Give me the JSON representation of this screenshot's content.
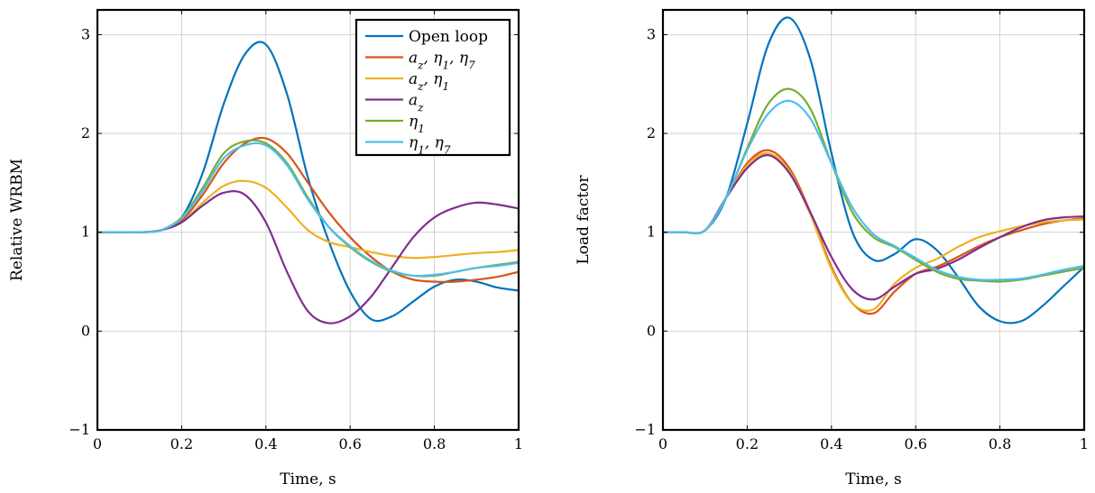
{
  "chart_data": [
    {
      "type": "line",
      "title": "",
      "xlabel": "Time, s",
      "ylabel": "Relative WRBM",
      "xlim": [
        0,
        1
      ],
      "ylim": [
        -1,
        3.25
      ],
      "xticks": [
        0,
        0.2,
        0.4,
        0.6,
        0.8,
        1
      ],
      "xtick_labels": [
        "0",
        "0.2",
        "0.4",
        "0.6",
        "0.8",
        "1"
      ],
      "yticks": [
        -1,
        0,
        1,
        2,
        3
      ],
      "ytick_labels": [
        "−1",
        "0",
        "1",
        "2",
        "3"
      ],
      "grid": true,
      "legend_position": "top-right",
      "x": [
        0,
        0.05,
        0.1,
        0.15,
        0.2,
        0.25,
        0.3,
        0.35,
        0.4,
        0.45,
        0.5,
        0.55,
        0.6,
        0.65,
        0.7,
        0.75,
        0.8,
        0.85,
        0.9,
        0.95,
        1
      ],
      "series": [
        {
          "name": "Open loop",
          "color": "#0072BD",
          "values": [
            1.0,
            1.0,
            1.0,
            1.02,
            1.15,
            1.6,
            2.3,
            2.8,
            2.9,
            2.4,
            1.55,
            0.9,
            0.4,
            0.12,
            0.15,
            0.3,
            0.45,
            0.52,
            0.5,
            0.44,
            0.41
          ]
        },
        {
          "name": "a_z, η_1, η_7",
          "color": "#D95319",
          "values": [
            1.0,
            1.0,
            1.0,
            1.02,
            1.12,
            1.38,
            1.7,
            1.9,
            1.95,
            1.8,
            1.5,
            1.2,
            0.95,
            0.75,
            0.6,
            0.52,
            0.5,
            0.5,
            0.52,
            0.55,
            0.6
          ]
        },
        {
          "name": "a_z, η_1",
          "color": "#EDB120",
          "values": [
            1.0,
            1.0,
            1.0,
            1.02,
            1.1,
            1.3,
            1.47,
            1.52,
            1.45,
            1.25,
            1.02,
            0.9,
            0.85,
            0.8,
            0.76,
            0.74,
            0.75,
            0.77,
            0.79,
            0.8,
            0.82
          ]
        },
        {
          "name": "a_z",
          "color": "#7E2F8E",
          "values": [
            1.0,
            1.0,
            1.0,
            1.02,
            1.1,
            1.27,
            1.4,
            1.38,
            1.1,
            0.6,
            0.2,
            0.08,
            0.15,
            0.35,
            0.65,
            0.95,
            1.15,
            1.25,
            1.3,
            1.28,
            1.24
          ]
        },
        {
          "name": "η_1",
          "color": "#77AC30",
          "values": [
            1.0,
            1.0,
            1.0,
            1.02,
            1.15,
            1.45,
            1.8,
            1.92,
            1.9,
            1.7,
            1.35,
            1.05,
            0.85,
            0.7,
            0.6,
            0.56,
            0.56,
            0.6,
            0.64,
            0.67,
            0.7
          ]
        },
        {
          "name": "η_1, η_7",
          "color": "#4DBEEE",
          "values": [
            1.0,
            1.0,
            1.0,
            1.02,
            1.14,
            1.42,
            1.75,
            1.88,
            1.88,
            1.68,
            1.33,
            1.05,
            0.86,
            0.71,
            0.61,
            0.56,
            0.57,
            0.6,
            0.64,
            0.66,
            0.69
          ]
        }
      ]
    },
    {
      "type": "line",
      "title": "",
      "xlabel": "Time, s",
      "ylabel": "Load factor",
      "xlim": [
        0,
        1
      ],
      "ylim": [
        -1,
        3.25
      ],
      "xticks": [
        0,
        0.2,
        0.4,
        0.6,
        0.8,
        1
      ],
      "xtick_labels": [
        "0",
        "0.2",
        "0.4",
        "0.6",
        "0.8",
        "1"
      ],
      "yticks": [
        -1,
        0,
        1,
        2,
        3
      ],
      "ytick_labels": [
        "−1",
        "0",
        "1",
        "2",
        "3"
      ],
      "grid": true,
      "x": [
        0,
        0.05,
        0.1,
        0.15,
        0.2,
        0.25,
        0.3,
        0.35,
        0.4,
        0.45,
        0.5,
        0.55,
        0.6,
        0.65,
        0.7,
        0.75,
        0.8,
        0.85,
        0.9,
        0.95,
        1
      ],
      "series": [
        {
          "name": "Open loop",
          "color": "#0072BD",
          "values": [
            1.0,
            1.0,
            1.02,
            1.35,
            2.1,
            2.9,
            3.17,
            2.75,
            1.8,
            1.0,
            0.72,
            0.78,
            0.93,
            0.82,
            0.55,
            0.25,
            0.1,
            0.1,
            0.25,
            0.45,
            0.65
          ]
        },
        {
          "name": "a_z, η_1, η_7",
          "color": "#D95319",
          "values": [
            1.0,
            1.0,
            1.02,
            1.35,
            1.7,
            1.83,
            1.65,
            1.2,
            0.65,
            0.28,
            0.18,
            0.4,
            0.58,
            0.65,
            0.75,
            0.86,
            0.95,
            1.02,
            1.08,
            1.12,
            1.14
          ]
        },
        {
          "name": "a_z, η_1",
          "color": "#EDB120",
          "values": [
            1.0,
            1.0,
            1.02,
            1.35,
            1.68,
            1.8,
            1.62,
            1.18,
            0.63,
            0.28,
            0.22,
            0.48,
            0.64,
            0.73,
            0.85,
            0.95,
            1.01,
            1.06,
            1.1,
            1.12,
            1.13
          ]
        },
        {
          "name": "a_z",
          "color": "#7E2F8E",
          "values": [
            1.0,
            1.0,
            1.02,
            1.35,
            1.65,
            1.78,
            1.6,
            1.2,
            0.75,
            0.42,
            0.32,
            0.45,
            0.58,
            0.63,
            0.72,
            0.84,
            0.95,
            1.05,
            1.12,
            1.15,
            1.16
          ]
        },
        {
          "name": "η_1",
          "color": "#77AC30",
          "values": [
            1.0,
            1.0,
            1.02,
            1.35,
            1.85,
            2.3,
            2.45,
            2.25,
            1.7,
            1.2,
            0.95,
            0.85,
            0.72,
            0.6,
            0.53,
            0.51,
            0.5,
            0.52,
            0.56,
            0.6,
            0.64
          ]
        },
        {
          "name": "η_1, η_7",
          "color": "#4DBEEE",
          "values": [
            1.0,
            1.0,
            1.02,
            1.35,
            1.83,
            2.2,
            2.33,
            2.15,
            1.7,
            1.25,
            0.98,
            0.86,
            0.74,
            0.62,
            0.55,
            0.52,
            0.52,
            0.53,
            0.57,
            0.62,
            0.66
          ]
        }
      ]
    }
  ]
}
